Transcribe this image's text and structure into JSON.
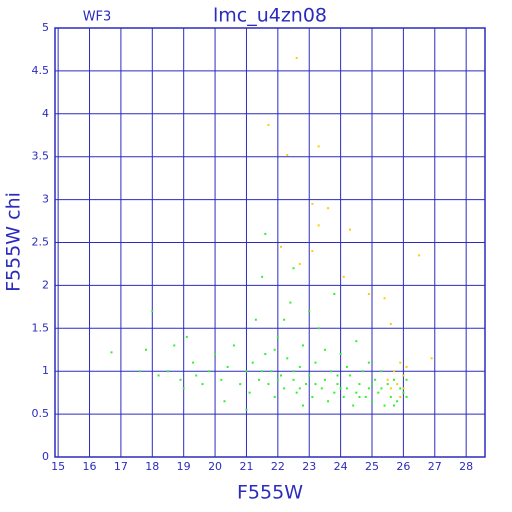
{
  "chart_data": {
    "type": "scatter",
    "title": "lmc_u4zn08",
    "annotation": "WF3",
    "x_label": "F555W",
    "y_label": "F555W chi",
    "xlim": [
      14.9,
      28.6
    ],
    "ylim": [
      0,
      5
    ],
    "xticks": [
      15,
      16,
      17,
      18,
      19,
      20,
      21,
      22,
      23,
      24,
      25,
      26,
      27,
      28
    ],
    "yticks": [
      0,
      0.5,
      1,
      1.5,
      2,
      2.5,
      3,
      3.5,
      4,
      4.5,
      5
    ],
    "grid": true,
    "axis_color": "#2b2bbf",
    "series": [
      {
        "color": "#33ee33",
        "x": [
          16.7,
          17.6,
          17.8,
          18.0,
          18.2,
          18.5,
          18.7,
          18.9,
          19.0,
          19.1,
          19.3,
          19.4,
          19.6,
          19.8,
          20.0,
          20.2,
          20.4,
          20.6,
          20.8,
          21.0,
          21.1,
          21.2,
          21.3,
          21.4,
          21.5,
          21.6,
          21.7,
          21.8,
          21.9,
          22.0,
          22.1,
          22.2,
          22.3,
          22.4,
          22.5,
          22.6,
          22.7,
          22.8,
          22.9,
          23.0,
          23.1,
          23.2,
          23.3,
          23.4,
          23.5,
          23.6,
          23.7,
          23.8,
          23.9,
          24.0,
          24.1,
          24.2,
          24.3,
          24.4,
          24.5,
          24.6,
          24.7,
          24.8,
          24.9,
          25.0,
          25.1,
          25.2,
          25.3,
          25.4,
          25.5,
          25.6,
          25.7,
          25.8,
          25.9,
          26.0,
          26.1,
          21.6,
          22.5,
          23.8,
          22.2,
          24.5,
          21.0,
          23.5,
          22.8,
          24.9,
          25.3,
          20.3,
          21.9,
          23.0,
          24.2,
          22.0,
          22.5,
          23.2,
          23.9,
          24.6,
          25.7,
          21.5,
          22.7,
          24.0,
          25.0,
          26.1
        ],
        "values": [
          1.22,
          1.0,
          1.25,
          1.7,
          0.95,
          1.0,
          1.3,
          0.9,
          0.8,
          1.4,
          1.1,
          0.95,
          0.85,
          1.0,
          1.2,
          0.9,
          1.05,
          1.3,
          0.85,
          1.0,
          0.75,
          1.1,
          1.6,
          0.9,
          2.1,
          1.2,
          0.85,
          1.0,
          0.7,
          1.4,
          0.95,
          0.8,
          1.15,
          1.8,
          0.9,
          0.75,
          1.05,
          1.3,
          0.85,
          0.95,
          0.7,
          1.1,
          1.5,
          0.8,
          0.9,
          0.65,
          1.0,
          0.75,
          0.85,
          1.2,
          0.7,
          0.8,
          0.95,
          0.6,
          0.75,
          0.85,
          1.0,
          0.7,
          0.8,
          0.65,
          0.9,
          0.75,
          0.8,
          0.6,
          0.85,
          0.7,
          0.9,
          0.65,
          0.8,
          0.75,
          0.7,
          2.6,
          2.2,
          1.9,
          1.6,
          1.35,
          0.55,
          1.25,
          0.6,
          1.1,
          1.0,
          0.65,
          1.25,
          1.7,
          1.05,
          0.9,
          1.0,
          0.85,
          0.95,
          0.7,
          0.6,
          1.0,
          0.8,
          0.8,
          0.85,
          0.9
        ]
      },
      {
        "color": "#ffcc00",
        "x": [
          22.6,
          21.7,
          22.3,
          23.3,
          23.1,
          23.6,
          23.3,
          24.3,
          22.1,
          23.1,
          24.1,
          22.7,
          26.5,
          24.9,
          25.4,
          25.6,
          26.9,
          25.7,
          25.8,
          25.9,
          26.0,
          25.6,
          26.1,
          25.9,
          25.5,
          26.0
        ],
        "values": [
          4.65,
          3.87,
          3.52,
          3.62,
          2.95,
          2.9,
          2.7,
          2.65,
          2.45,
          2.4,
          2.1,
          2.25,
          2.35,
          1.9,
          1.85,
          1.55,
          1.15,
          1.0,
          0.85,
          1.1,
          0.95,
          0.8,
          1.05,
          0.7,
          0.9,
          0.8
        ]
      }
    ]
  }
}
